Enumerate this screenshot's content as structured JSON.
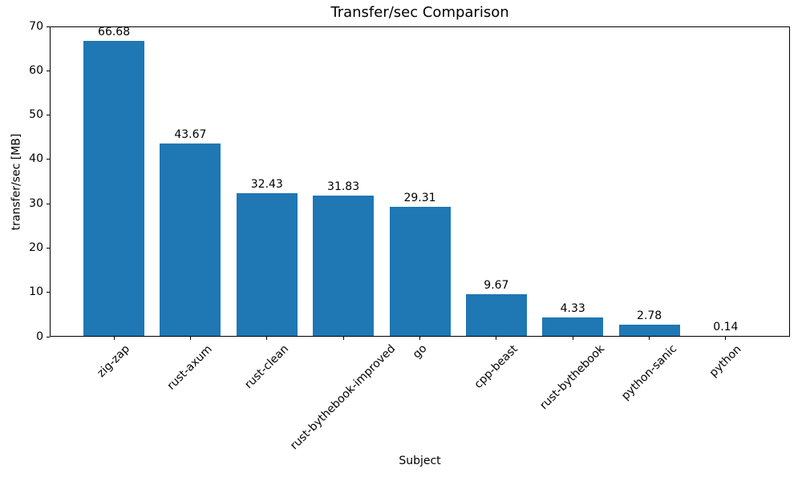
{
  "chart_data": {
    "type": "bar",
    "title": "Transfer/sec Comparison",
    "xlabel": "Subject",
    "ylabel": "transfer/sec [MB]",
    "categories": [
      "zig-zap",
      "rust-axum",
      "rust-clean",
      "rust-bythebook-improved",
      "go",
      "cpp-beast",
      "rust-bythebook",
      "python-sanic",
      "python"
    ],
    "values": [
      66.68,
      43.67,
      32.43,
      31.83,
      29.31,
      9.67,
      4.33,
      2.78,
      0.14
    ],
    "bar_labels": [
      "66.68",
      "43.67",
      "32.43",
      "31.83",
      "29.31",
      "9.67",
      "4.33",
      "2.78",
      "0.14"
    ],
    "ylim": [
      0,
      70
    ],
    "yticks": [
      0,
      10,
      20,
      30,
      40,
      50,
      60,
      70
    ],
    "bar_color": "#1f77b4",
    "text_color": "#000000",
    "xtick_rotation": 45,
    "grid": false,
    "legend": "none"
  }
}
